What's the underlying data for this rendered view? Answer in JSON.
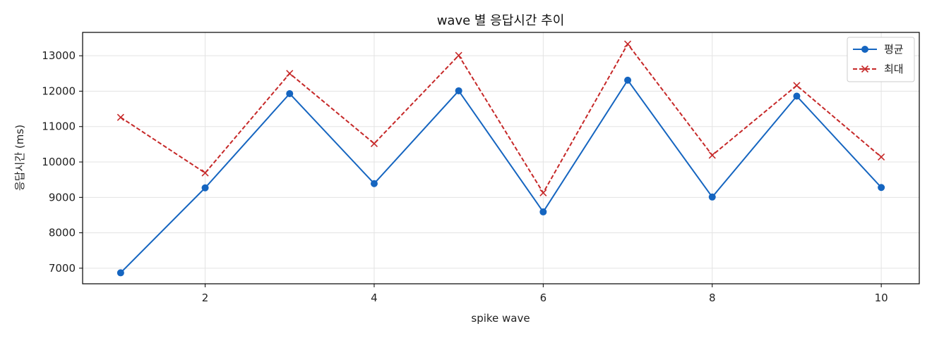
{
  "chart_data": {
    "type": "line",
    "title": "wave 별 응답시간 추이",
    "xlabel": "spike wave",
    "ylabel": "응답시간 (ms)",
    "x": [
      1,
      2,
      3,
      4,
      5,
      6,
      7,
      8,
      9,
      10
    ],
    "xlim": [
      0.55,
      10.45
    ],
    "ylim": [
      6560,
      13660
    ],
    "xticks": [
      2,
      4,
      6,
      8,
      10
    ],
    "yticks": [
      7000,
      8000,
      9000,
      10000,
      11000,
      12000,
      13000
    ],
    "grid": true,
    "legend_position": "top-right",
    "series": [
      {
        "name": "평균",
        "values": [
          6870,
          9270,
          11930,
          9390,
          12010,
          8590,
          12310,
          9010,
          11860,
          9280
        ],
        "color": "#1565c0",
        "line_style": "solid",
        "marker": "circle"
      },
      {
        "name": "최대",
        "values": [
          11260,
          9690,
          12500,
          10520,
          13010,
          9130,
          13330,
          10190,
          12160,
          10140
        ],
        "color": "#c62828",
        "line_style": "dashed",
        "marker": "x"
      }
    ]
  }
}
